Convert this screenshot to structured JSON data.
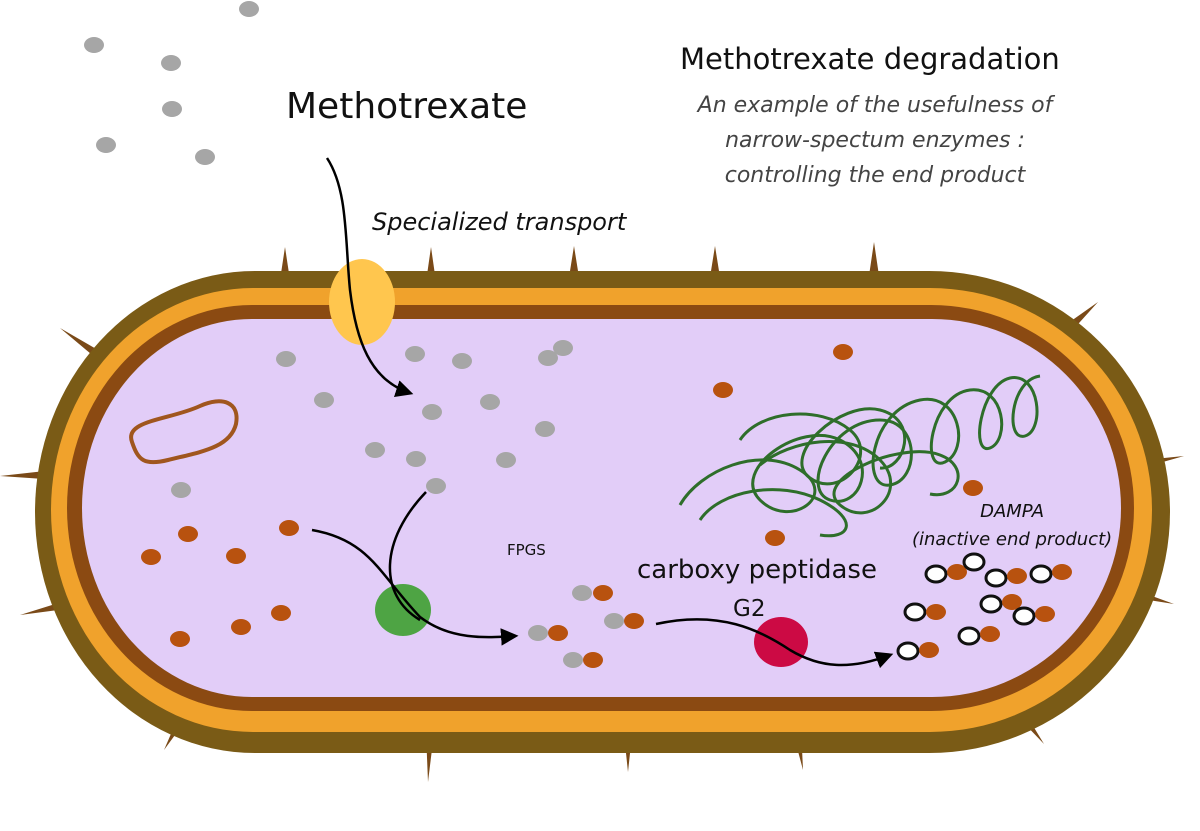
{
  "title": "Methotrexate degradation",
  "subtitle": [
    "An example of the usefulness of",
    "narrow-spectum enzymes :",
    "controlling the end product"
  ],
  "labels": {
    "drug": "Methotrexate",
    "transport": "Specialized transport",
    "fpgs": "FPGS",
    "enzyme_line1": "carboxy peptidase",
    "enzyme_line2": "G2",
    "product_line1": "DAMPA",
    "product_line2": "(inactive end product)"
  },
  "colors": {
    "cytoplasm": "#e2cdf8",
    "outer_wall": "#7a5b16",
    "membrane": "#f0a22c",
    "inner_membrane": "#8b4a12",
    "transporter": "#ffc64e",
    "fpgs_enzyme": "#4ea444",
    "cpg2_enzyme": "#cc0a44",
    "methotrexate": "#a6a6a6",
    "glutamate": "#b8520f",
    "dampa": "#111111",
    "dna": "#2e6e2a",
    "plasmid": "#a0561e"
  }
}
